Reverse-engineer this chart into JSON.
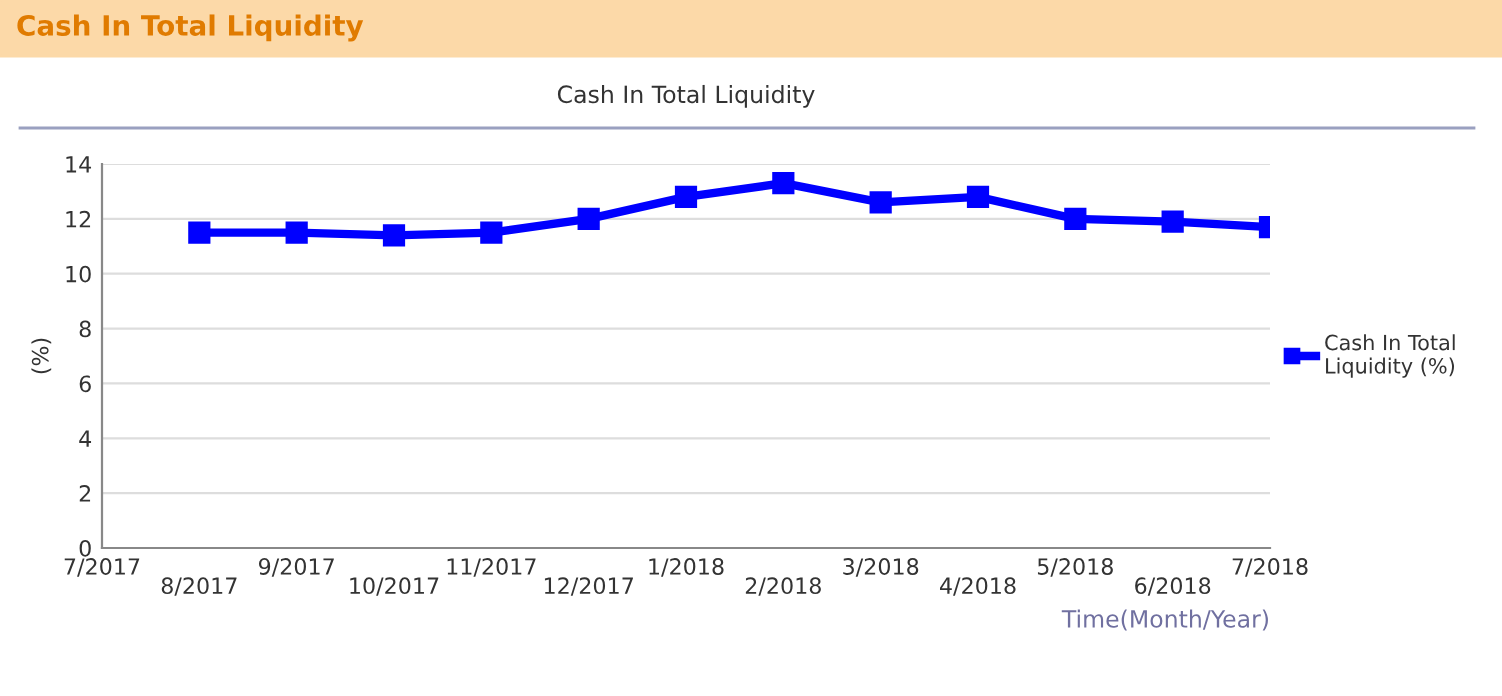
{
  "chart_data": {
    "type": "line",
    "title": "Cash In Total Liquidity",
    "subtitle": "Cash In Total Liquidity",
    "xlabel": "Time(Month/Year)",
    "ylabel": "(%)",
    "categories": [
      "7/2017",
      "8/2017",
      "9/2017",
      "10/2017",
      "11/2017",
      "12/2017",
      "1/2018",
      "2/2018",
      "3/2018",
      "4/2018",
      "5/2018",
      "6/2018",
      "7/2018"
    ],
    "series": [
      {
        "name": "Cash In Total Liquidity (%)",
        "color": "#0000ff",
        "values": [
          null,
          11.5,
          11.5,
          11.4,
          11.5,
          12.0,
          12.8,
          13.3,
          12.6,
          12.8,
          12.0,
          11.9,
          11.7
        ]
      }
    ],
    "ylim": [
      0,
      14
    ],
    "yticks": [
      0,
      2,
      4,
      6,
      8,
      10,
      12,
      14
    ],
    "grid": "y",
    "legend": "right",
    "marker": "square",
    "line_style": "solid"
  }
}
